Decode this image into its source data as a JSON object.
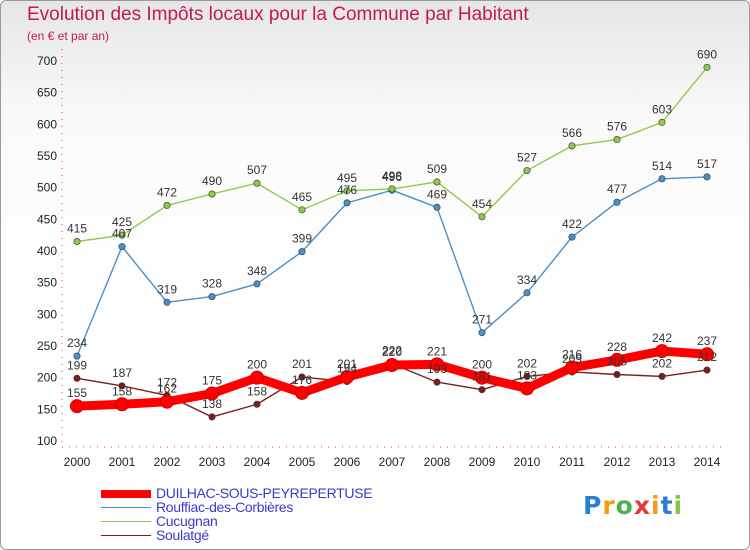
{
  "title": "Evolution des Impôts locaux pour la Commune par Habitant",
  "subtitle": "(en € et par an)",
  "chart_data": {
    "type": "line",
    "x": [
      "2000",
      "2001",
      "2002",
      "2003",
      "2004",
      "2005",
      "2006",
      "2007",
      "2008",
      "2009",
      "2010",
      "2011",
      "2012",
      "2013",
      "2014"
    ],
    "ylim": [
      100,
      700
    ],
    "yticks": [
      100,
      150,
      200,
      250,
      300,
      350,
      400,
      450,
      500,
      550,
      600,
      650,
      700
    ],
    "grid": false,
    "legend_position": "bottom-left",
    "series": [
      {
        "name": "DUILHAC-SOUS-PEYREPERTUSE",
        "color": "#ff0000",
        "values": [
          155,
          158,
          162,
          175,
          200,
          176,
          201,
          220,
          221,
          200,
          183,
          216,
          228,
          242,
          237
        ]
      },
      {
        "name": "Rouffiac-des-Corbières",
        "color": "#4a90c8",
        "values": [
          234,
          407,
          319,
          328,
          348,
          399,
          476,
          496,
          469,
          271,
          334,
          422,
          477,
          514,
          517
        ]
      },
      {
        "name": "Cucugnan",
        "color": "#8ccc4a",
        "values": [
          415,
          425,
          472,
          490,
          507,
          465,
          495,
          498,
          509,
          454,
          527,
          566,
          576,
          603,
          690
        ]
      },
      {
        "name": "Soulatgé",
        "color": "#7a1f1f",
        "values": [
          199,
          187,
          172,
          138,
          158,
          201,
          194,
          222,
          193,
          181,
          202,
          209,
          205,
          202,
          212
        ]
      }
    ]
  },
  "logo": {
    "letters": [
      "P",
      "r",
      "o",
      "x",
      "i",
      "t",
      "i"
    ],
    "colors": [
      "#2a7fd4",
      "#f39c12",
      "#4caf50",
      "#e53935",
      "#f39c12",
      "#2a7fd4",
      "#8bc34a"
    ]
  }
}
